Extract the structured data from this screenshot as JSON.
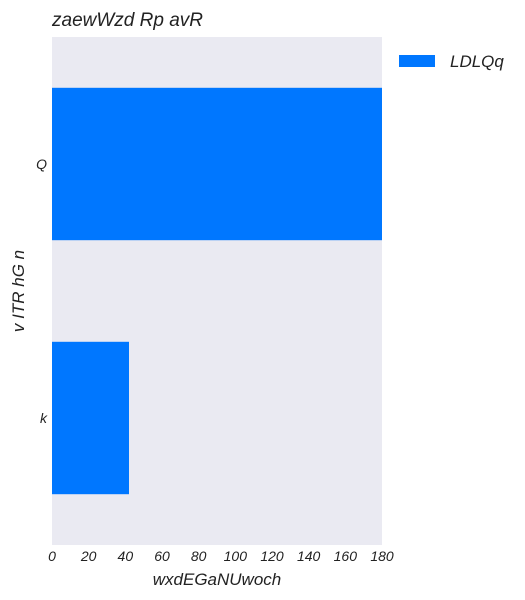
{
  "chart_data": {
    "type": "bar",
    "orientation": "horizontal",
    "title": "zaewWzd Rp avR",
    "xlabel": "wxdEGaNUwoch",
    "ylabel": "v ITR  hG  n",
    "categories": [
      "Q",
      "k"
    ],
    "series": [
      {
        "name": "LDLQq",
        "values": [
          180,
          42
        ],
        "color": "#0077ff"
      }
    ],
    "xlim": [
      0,
      180
    ],
    "xticks": [
      0,
      20,
      40,
      60,
      80,
      100,
      120,
      140,
      160,
      180
    ],
    "grid": false,
    "background_color": "#eaeaf2",
    "legend_position": "top-right"
  }
}
